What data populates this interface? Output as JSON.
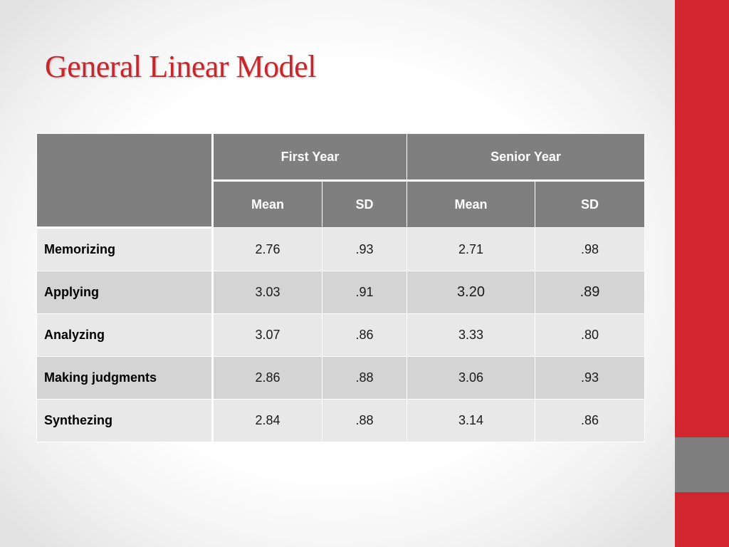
{
  "slide": {
    "title": "General Linear Model"
  },
  "table": {
    "groups": [
      "First Year",
      "Senior Year"
    ],
    "subheaders": [
      "Mean",
      "SD",
      "Mean",
      "SD"
    ],
    "rows": [
      {
        "label": "Memorizing",
        "values": [
          "2.76",
          ".93",
          "2.71",
          ".98"
        ]
      },
      {
        "label": "Applying",
        "values": [
          "3.03",
          ".91",
          "3.20",
          ".89"
        ]
      },
      {
        "label": "Analyzing",
        "values": [
          "3.07",
          ".86",
          "3.33",
          ".80"
        ]
      },
      {
        "label": "Making judgments",
        "values": [
          "2.86",
          ".88",
          "3.06",
          ".93"
        ]
      },
      {
        "label": "Synthezing",
        "values": [
          "2.84",
          ".88",
          "3.14",
          ".86"
        ]
      }
    ]
  },
  "theme": {
    "accent_red": "#d2262e",
    "title_red": "#c9252c",
    "header_gray": "#7f7f7f",
    "row_light": "#e8e8e8",
    "row_dark": "#d4d4d4"
  }
}
